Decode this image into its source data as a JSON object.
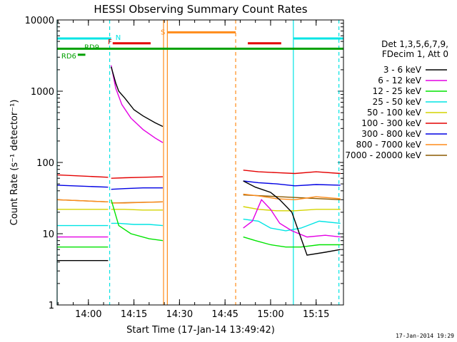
{
  "chart_data": {
    "type": "line",
    "title": "HESSI Observing Summary Count Rates",
    "xlabel": "Start Time (17-Jan-14 13:49:42)",
    "ylabel": "Count Rate (s⁻¹ detector⁻¹)",
    "yscale": "log",
    "ylim": [
      1,
      10000
    ],
    "xlim": [
      "13:49:42",
      "15:24:00"
    ],
    "x_ticks": [
      "14:00",
      "14:15",
      "14:30",
      "14:45",
      "15:00",
      "15:15"
    ],
    "y_ticks": [
      "1",
      "10",
      "100",
      "1000",
      "10000"
    ],
    "timestamp": "17-Jan-2014 19:29",
    "legend": {
      "placement": "right",
      "header": [
        "Det 1,3,5,6,7,9,",
        "FDecim 1, Att 0"
      ],
      "entries": [
        {
          "label": "3 - 6 keV",
          "color": "#000000"
        },
        {
          "label": "6 - 12 keV",
          "color": "#e400e4"
        },
        {
          "label": "12 - 25 keV",
          "color": "#00e400"
        },
        {
          "label": "25 - 50 keV",
          "color": "#00e4e4"
        },
        {
          "label": "50 - 100 keV",
          "color": "#d4d400"
        },
        {
          "label": "100 - 300 keV",
          "color": "#e40000"
        },
        {
          "label": "300 - 800 keV",
          "color": "#0000e4"
        },
        {
          "label": "800 - 7000 keV",
          "color": "#ff8c1a"
        },
        {
          "label": "7000 - 20000 keV",
          "color": "#8b5a00"
        }
      ]
    },
    "flags": [
      {
        "label": "N",
        "color": "#00e4e4",
        "y": 5500,
        "spans": [
          [
            "13:49:42",
            "14:07:30"
          ],
          [
            "15:07:30",
            "15:24:00"
          ]
        ]
      },
      {
        "label": "F",
        "color": "#e40000",
        "y": 4700,
        "spans": [
          [
            "14:08:00",
            "14:20:30"
          ],
          [
            "14:52:30",
            "15:03:30"
          ]
        ]
      },
      {
        "label": "S",
        "color": "#ff8c1a",
        "y": 6700,
        "spans": [
          [
            "14:26:00",
            "14:48:30"
          ]
        ]
      },
      {
        "label": "RD9",
        "color": "#00a000",
        "y": 3950,
        "spans": [
          [
            "13:49:42",
            "15:24:00"
          ]
        ]
      },
      {
        "label": "RD6",
        "color": "#00a000",
        "y": 3250,
        "spans": [
          [
            "13:56:30",
            "13:59:00"
          ]
        ]
      }
    ],
    "series": [
      {
        "name": "3 - 6 keV",
        "segments": [
          {
            "x": [
              "13:49:42",
              "14:06:30"
            ],
            "y": [
              4.2,
              4.2
            ]
          },
          {
            "x": [
              "14:07:30",
              "14:09:00",
              "14:10:00",
              "14:12:00",
              "14:15:00",
              "14:18:00",
              "14:22:00",
              "14:24:30"
            ],
            "y": [
              2200,
              1300,
              1000,
              800,
              550,
              450,
              360,
              320
            ]
          },
          {
            "x": [
              "14:51:00",
              "14:55:00",
              "15:00:00",
              "15:03:00",
              "15:07:00",
              "15:12:00",
              "15:18:00",
              "15:23:00"
            ],
            "y": [
              55,
              45,
              38,
              30,
              20,
              5,
              5.5,
              6
            ]
          }
        ]
      },
      {
        "name": "6 - 12 keV",
        "segments": [
          {
            "x": [
              "13:49:42",
              "14:06:30"
            ],
            "y": [
              9,
              9
            ]
          },
          {
            "x": [
              "14:07:30",
              "14:09:00",
              "14:11:00",
              "14:14:00",
              "14:18:00",
              "14:22:00",
              "14:24:30"
            ],
            "y": [
              2300,
              1100,
              650,
              420,
              290,
              220,
              190
            ]
          },
          {
            "x": [
              "14:51:00",
              "14:54:00",
              "14:57:00",
              "15:00:00",
              "15:03:00",
              "15:07:00",
              "15:12:00",
              "15:18:00",
              "15:23:00"
            ],
            "y": [
              12,
              15,
              30,
              22,
              14,
              11,
              9,
              9.5,
              9
            ]
          }
        ]
      },
      {
        "name": "12 - 25 keV",
        "segments": [
          {
            "x": [
              "13:49:42",
              "14:06:30"
            ],
            "y": [
              6.5,
              6.5
            ]
          },
          {
            "x": [
              "14:07:30",
              "14:10:00",
              "14:14:00",
              "14:20:00",
              "14:24:30"
            ],
            "y": [
              30,
              13,
              10,
              8.5,
              8
            ]
          },
          {
            "x": [
              "14:51:00",
              "14:55:00",
              "15:00:00",
              "15:05:00",
              "15:10:00",
              "15:16:00",
              "15:23:00"
            ],
            "y": [
              9,
              8,
              7,
              6.5,
              6.5,
              7,
              7
            ]
          }
        ]
      },
      {
        "name": "25 - 50 keV",
        "segments": [
          {
            "x": [
              "13:49:42",
              "14:06:30"
            ],
            "y": [
              13,
              13
            ]
          },
          {
            "x": [
              "14:07:30",
              "14:10:00",
              "14:15:00",
              "14:20:00",
              "14:24:30"
            ],
            "y": [
              14,
              14,
              13.5,
              13.5,
              13
            ]
          },
          {
            "x": [
              "14:51:00",
              "14:56:00",
              "15:00:00",
              "15:05:00",
              "15:10:00",
              "15:16:00",
              "15:23:00"
            ],
            "y": [
              16,
              15,
              12,
              11,
              12,
              15,
              14
            ]
          }
        ]
      },
      {
        "name": "50 - 100 keV",
        "segments": [
          {
            "x": [
              "13:49:42",
              "14:06:30"
            ],
            "y": [
              22,
              22
            ]
          },
          {
            "x": [
              "14:07:30",
              "14:12:00",
              "14:18:00",
              "14:24:30"
            ],
            "y": [
              22,
              22,
              21.5,
              21.5
            ]
          },
          {
            "x": [
              "14:51:00",
              "14:56:00",
              "15:02:00",
              "15:08:00",
              "15:15:00",
              "15:23:00"
            ],
            "y": [
              24,
              22,
              21,
              21,
              22,
              22
            ]
          }
        ]
      },
      {
        "name": "100 - 300 keV",
        "segments": [
          {
            "x": [
              "13:49:42",
              "14:06:30"
            ],
            "y": [
              67,
              62
            ]
          },
          {
            "x": [
              "14:07:30",
              "14:12:00",
              "14:18:00",
              "14:24:30"
            ],
            "y": [
              60,
              61,
              62,
              63
            ]
          },
          {
            "x": [
              "14:51:00",
              "14:56:00",
              "15:02:00",
              "15:08:00",
              "15:15:00",
              "15:23:00"
            ],
            "y": [
              78,
              74,
              72,
              70,
              74,
              70
            ]
          }
        ]
      },
      {
        "name": "300 - 800 keV",
        "segments": [
          {
            "x": [
              "13:49:42",
              "14:06:30"
            ],
            "y": [
              48,
              45
            ]
          },
          {
            "x": [
              "14:07:30",
              "14:12:00",
              "14:18:00",
              "14:24:30"
            ],
            "y": [
              42,
              43,
              44,
              44
            ]
          },
          {
            "x": [
              "14:51:00",
              "14:56:00",
              "15:02:00",
              "15:08:00",
              "15:15:00",
              "15:23:00"
            ],
            "y": [
              55,
              52,
              50,
              47,
              49,
              48
            ]
          }
        ]
      },
      {
        "name": "800 - 7000 keV",
        "segments": [
          {
            "x": [
              "13:49:42",
              "14:06:30"
            ],
            "y": [
              30,
              28
            ]
          },
          {
            "x": [
              "14:07:30",
              "14:12:00",
              "14:18:00",
              "14:24:30"
            ],
            "y": [
              27,
              27,
              27.5,
              28
            ]
          },
          {
            "x": [
              "14:51:00",
              "14:56:00",
              "15:02:00",
              "15:08:00",
              "15:15:00",
              "15:23:00"
            ],
            "y": [
              36,
              34,
              31,
              30,
              33,
              31
            ]
          }
        ]
      },
      {
        "name": "7000 - 20000 keV",
        "segments": [
          {
            "x": [
              "13:49:42",
              "14:06:30"
            ],
            "y": [
              30,
              28
            ]
          },
          {
            "x": [
              "14:07:30",
              "14:24:30"
            ],
            "y": [
              27,
              28
            ]
          },
          {
            "x": [
              "14:51:00",
              "15:23:00"
            ],
            "y": [
              35,
              30
            ]
          }
        ]
      }
    ],
    "vertical_lines": [
      {
        "x": "13:49:42",
        "color": "#00e4e4",
        "style": "solid"
      },
      {
        "x": "14:07:00",
        "color": "#00e4e4",
        "style": "dashed"
      },
      {
        "x": "14:24:45",
        "color": "#ff8c1a",
        "style": "solid"
      },
      {
        "x": "14:26:00",
        "color": "#ff8c1a",
        "style": "solid"
      },
      {
        "x": "14:48:30",
        "color": "#ff8c1a",
        "style": "dashed"
      },
      {
        "x": "15:07:30",
        "color": "#00e4e4",
        "style": "solid"
      },
      {
        "x": "15:22:30",
        "color": "#00e4e4",
        "style": "dashed"
      }
    ]
  }
}
